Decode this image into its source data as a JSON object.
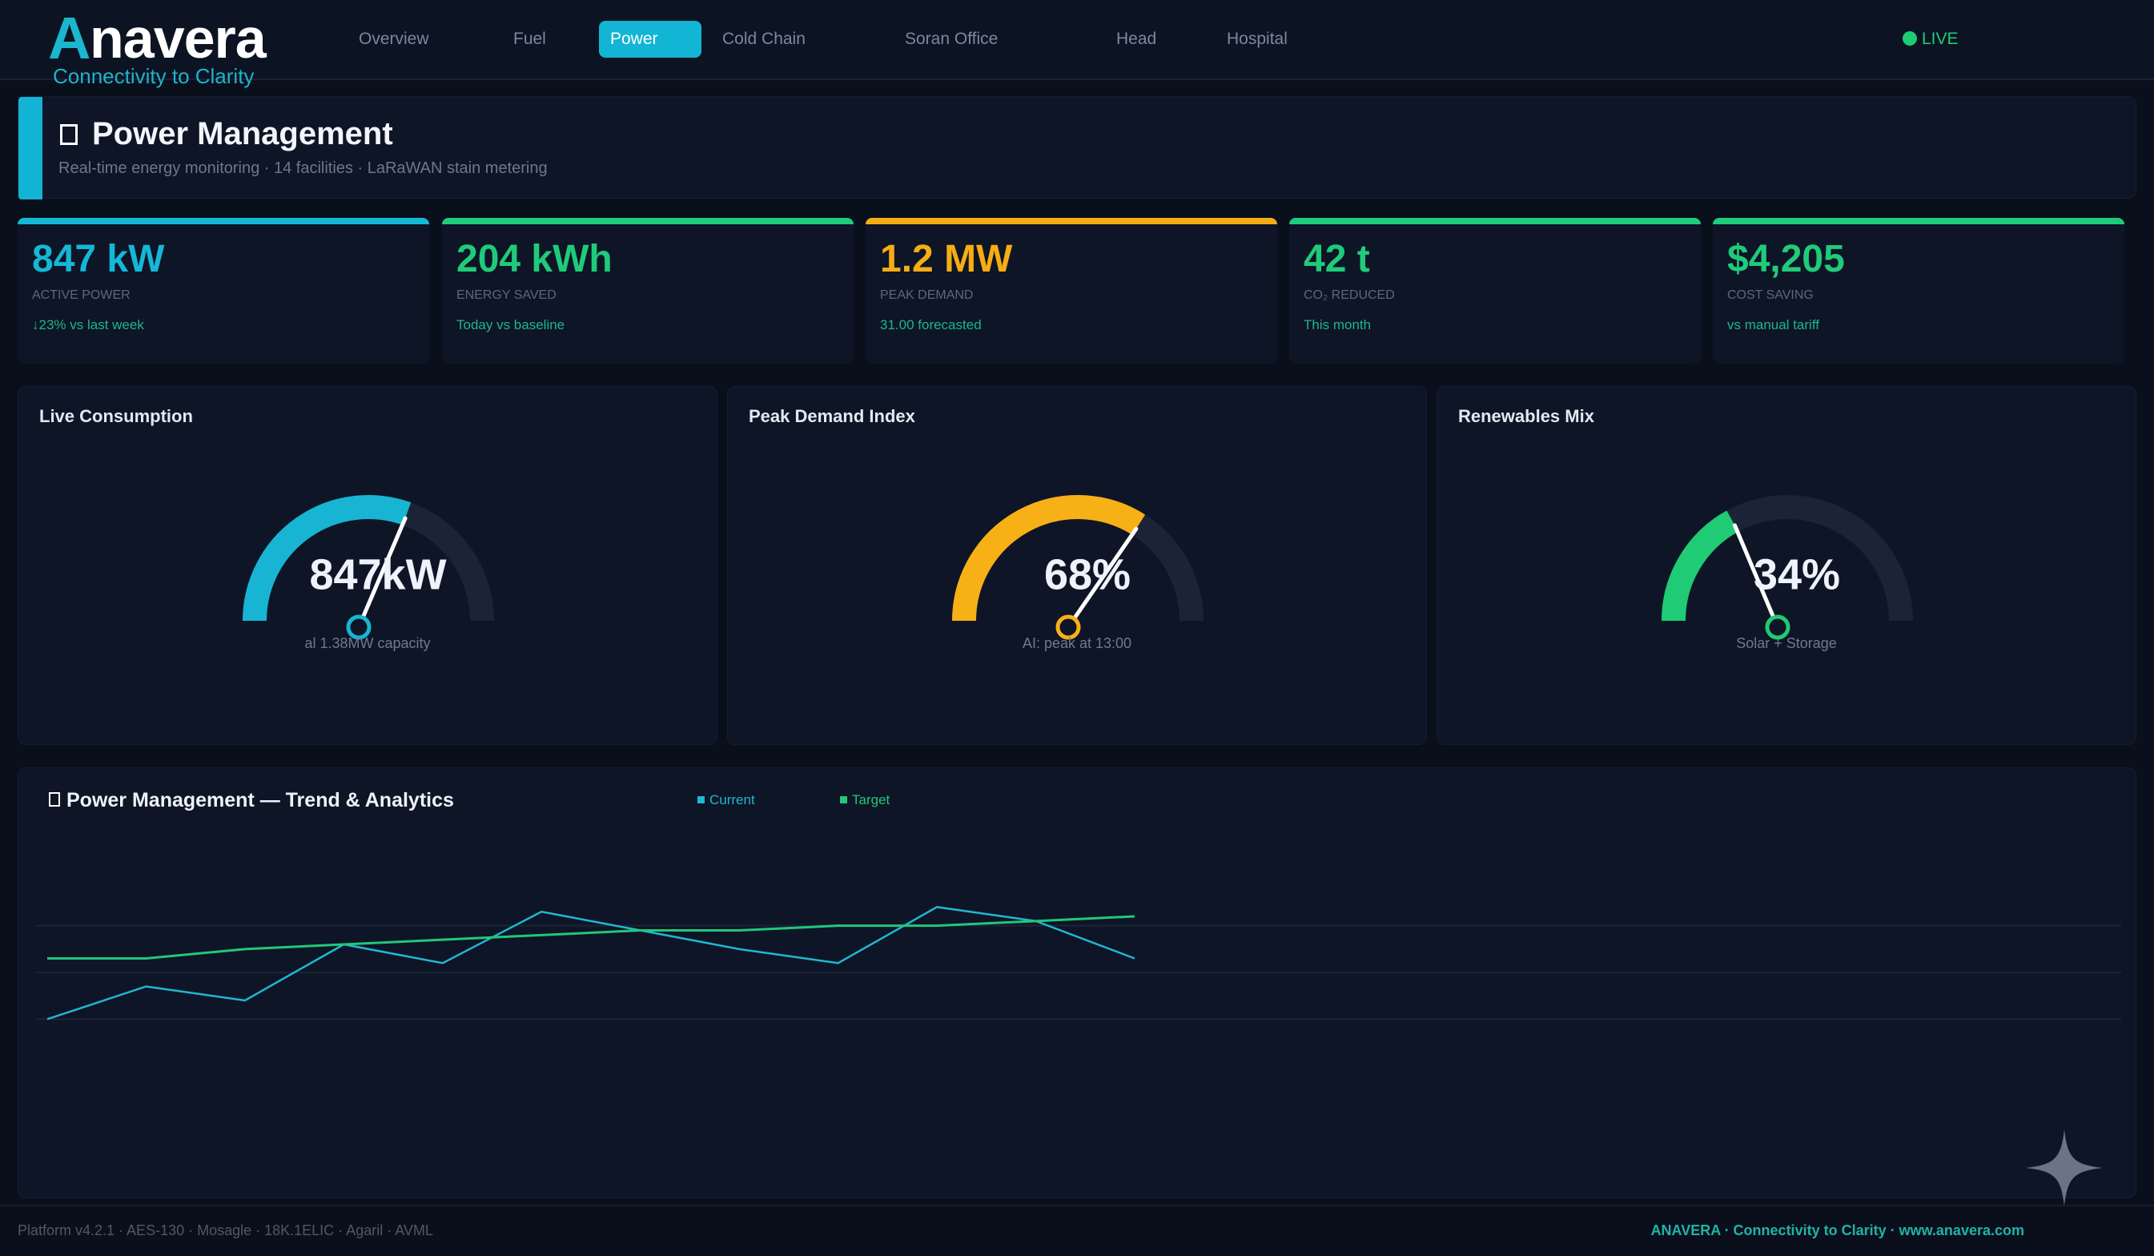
{
  "brand": {
    "logo_mark": "A",
    "logo_rest": "navera",
    "tagline": "Connectivity to Clarity"
  },
  "nav": {
    "items": [
      "Overview",
      "Fuel",
      "Power",
      "Cold Chain",
      "Soran Office",
      "Head",
      "Hospital"
    ],
    "active": "Power",
    "live_label": "LIVE"
  },
  "header": {
    "title": "Power Management",
    "subtitle": "Real-time energy monitoring · 14 facilities · LaRaWAN stain metering"
  },
  "kpis": [
    {
      "value": "847 kW",
      "label": "ACTIVE POWER",
      "note": "↓23% vs last week",
      "color": "#14b8d6"
    },
    {
      "value": "204 kWh",
      "label": "ENERGY SAVED",
      "note": "Today vs baseline",
      "color": "#1fcb7a"
    },
    {
      "value": "1.2 MW",
      "label": "PEAK DEMAND",
      "note": "31.00 forecasted",
      "color": "#f6ad14"
    },
    {
      "value": "42 t",
      "label": "CO₂ REDUCED",
      "note": "This month",
      "color": "#1fcb7a"
    },
    {
      "value": "$4,205",
      "label": "COST SAVING",
      "note": "vs manual tariff",
      "color": "#1fcb7a"
    }
  ],
  "gauges": [
    {
      "title": "Live Consumption",
      "value_text": "847kW",
      "caption": "al 1.38MW capacity",
      "fraction": 0.61,
      "color": "#17b5d3"
    },
    {
      "title": "Peak Demand Index",
      "value_text": "68%",
      "caption": "AI: peak at 13:00",
      "fraction": 0.68,
      "color": "#f7b117"
    },
    {
      "title": "Renewables Mix",
      "value_text": "34%",
      "caption": "Solar + Storage",
      "fraction": 0.34,
      "color": "#1fcb74"
    }
  ],
  "trend": {
    "title": "Power Management — Trend & Analytics",
    "legend": [
      {
        "name": "Current",
        "color": "#1fb8d0"
      },
      {
        "name": "Target",
        "color": "#22c77a"
      }
    ]
  },
  "chart_data": {
    "type": "line",
    "title": "Power Management — Trend & Analytics",
    "xlabel": "",
    "ylabel": "",
    "x": [
      1,
      2,
      3,
      4,
      5,
      6,
      7,
      8,
      9,
      10,
      11,
      12
    ],
    "series": [
      {
        "name": "Current",
        "values": [
          2.0,
          2.7,
          2.4,
          3.6,
          3.2,
          4.3,
          3.9,
          3.5,
          3.2,
          4.4,
          4.1,
          3.3
        ]
      },
      {
        "name": "Target",
        "values": [
          3.3,
          3.3,
          3.5,
          3.6,
          3.7,
          3.8,
          3.9,
          3.9,
          4.0,
          4.0,
          4.1,
          4.2
        ]
      }
    ],
    "ylim": [
      0,
      6
    ],
    "grid": true,
    "legend_position": "top-center"
  },
  "footer": {
    "left": "Platform v4.2.1 · AES-130 · Mosagle · 18K.1ELIC · Agaril · AVML",
    "right": "ANAVERA · Connectivity to Clarity · www.anavera.com"
  }
}
